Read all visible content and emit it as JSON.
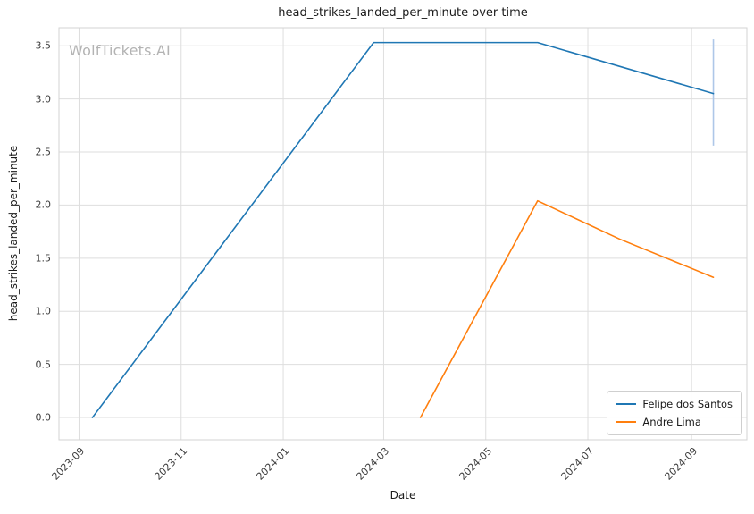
{
  "watermark": "WolfTickets.AI",
  "chart_data": {
    "type": "line",
    "title": "head_strikes_landed_per_minute over time",
    "xlabel": "Date",
    "ylabel": "head_strikes_landed_per_minute",
    "grid": true,
    "legend_position": "lower right",
    "x_ticks": [
      "2023-09",
      "2023-11",
      "2024-01",
      "2024-03",
      "2024-05",
      "2024-07",
      "2024-09"
    ],
    "y_ticks": [
      0.0,
      0.5,
      1.0,
      1.5,
      2.0,
      2.5,
      3.0,
      3.5
    ],
    "x_range": [
      "2023-08-20",
      "2024-10-04"
    ],
    "y_range": [
      -0.21,
      3.67
    ],
    "colors": {
      "grid": "#dedede",
      "border": "#d3d3d3",
      "tick_label": "#3d3d3d",
      "watermark": "#b3b3b3"
    },
    "series": [
      {
        "name": "Felipe dos Santos",
        "color": "#1f77b4",
        "points": [
          {
            "date": "2023-09-09",
            "value": 0.0
          },
          {
            "date": "2024-02-24",
            "value": 3.53
          },
          {
            "date": "2024-06-01",
            "value": 3.53
          },
          {
            "date": "2024-09-14",
            "value": 3.05
          }
        ],
        "error_bar": {
          "date": "2024-09-14",
          "low": 2.56,
          "high": 3.56,
          "color": "#aec7e8"
        }
      },
      {
        "name": "Andre Lima",
        "color": "#ff7f0e",
        "points": [
          {
            "date": "2024-03-23",
            "value": 0.0
          },
          {
            "date": "2024-06-01",
            "value": 2.04
          },
          {
            "date": "2024-07-20",
            "value": 1.68
          },
          {
            "date": "2024-09-14",
            "value": 1.32
          }
        ]
      }
    ]
  }
}
